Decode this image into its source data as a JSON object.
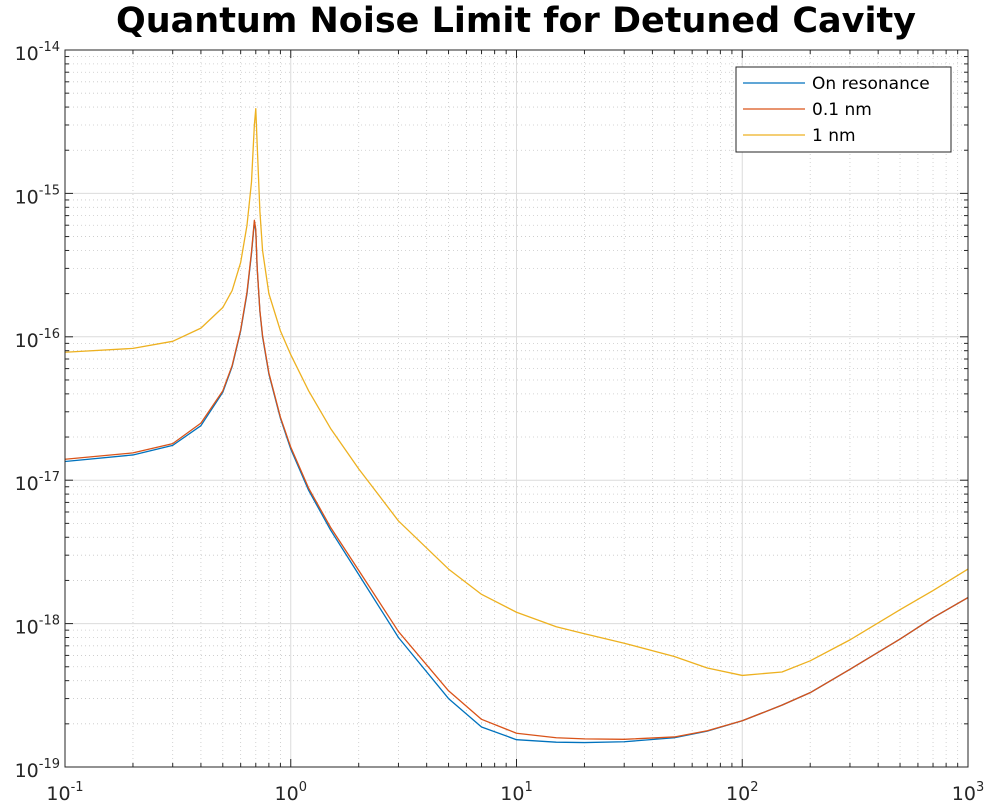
{
  "chart_data": {
    "type": "line",
    "title": "Quantum Noise Limit for Detuned Cavity",
    "xlabel": "",
    "ylabel": "",
    "x_scale": "log",
    "y_scale": "log",
    "xlim": [
      0.1,
      1000
    ],
    "ylim": [
      1e-19,
      1e-14
    ],
    "grid": true,
    "minor_grid": true,
    "legend_location": "top-right",
    "x_ticks": [
      {
        "base": "10",
        "exp": "-1"
      },
      {
        "base": "10",
        "exp": "0"
      },
      {
        "base": "10",
        "exp": "1"
      },
      {
        "base": "10",
        "exp": "2"
      },
      {
        "base": "10",
        "exp": "3"
      }
    ],
    "y_ticks": [
      {
        "base": "10",
        "exp": "-14"
      },
      {
        "base": "10",
        "exp": "-15"
      },
      {
        "base": "10",
        "exp": "-16"
      },
      {
        "base": "10",
        "exp": "-17"
      },
      {
        "base": "10",
        "exp": "-18"
      },
      {
        "base": "10",
        "exp": "-19"
      }
    ],
    "series": [
      {
        "name": "On resonance",
        "color": "#0072BD",
        "x": [
          0.1,
          0.2,
          0.3,
          0.4,
          0.5,
          0.55,
          0.6,
          0.64,
          0.67,
          0.69,
          0.7,
          0.71,
          0.73,
          0.75,
          0.8,
          0.9,
          1.0,
          1.2,
          1.5,
          2,
          3,
          5,
          7,
          10,
          15,
          20,
          30,
          50,
          70,
          100,
          150,
          200,
          300,
          500,
          700,
          1000
        ],
        "y": [
          1.35e-17,
          1.5e-17,
          1.75e-17,
          2.4e-17,
          4.1e-17,
          6.2e-17,
          1.1e-16,
          2e-16,
          3.8e-16,
          6.3e-16,
          5.5e-16,
          3e-16,
          1.5e-16,
          1e-16,
          5.5e-17,
          2.7e-17,
          1.65e-17,
          8.5e-18,
          4.5e-18,
          2.2e-18,
          8e-19,
          3e-19,
          1.9e-19,
          1.55e-19,
          1.49e-19,
          1.48e-19,
          1.5e-19,
          1.6e-19,
          1.78e-19,
          2.1e-19,
          2.7e-19,
          3.3e-19,
          4.8e-19,
          7.8e-19,
          1.1e-18,
          1.52e-18
        ]
      },
      {
        "name": "0.1 nm",
        "color": "#D95319",
        "x": [
          0.1,
          0.2,
          0.3,
          0.4,
          0.5,
          0.55,
          0.6,
          0.64,
          0.67,
          0.69,
          0.7,
          0.71,
          0.73,
          0.75,
          0.8,
          0.9,
          1.0,
          1.2,
          1.5,
          2,
          3,
          5,
          7,
          10,
          15,
          20,
          30,
          50,
          70,
          100,
          150,
          200,
          300,
          500,
          700,
          1000
        ],
        "y": [
          1.4e-17,
          1.55e-17,
          1.8e-17,
          2.5e-17,
          4.2e-17,
          6.3e-17,
          1.12e-16,
          2.05e-16,
          3.9e-16,
          6.5e-16,
          5.6e-16,
          3.05e-16,
          1.52e-16,
          1.02e-16,
          5.6e-17,
          2.75e-17,
          1.7e-17,
          8.8e-18,
          4.7e-18,
          2.35e-18,
          8.8e-19,
          3.4e-19,
          2.15e-19,
          1.72e-19,
          1.6e-19,
          1.57e-19,
          1.56e-19,
          1.62e-19,
          1.79e-19,
          2.1e-19,
          2.7e-19,
          3.3e-19,
          4.8e-19,
          7.8e-19,
          1.1e-18,
          1.52e-18
        ]
      },
      {
        "name": "1 nm",
        "color": "#EDB120",
        "x": [
          0.1,
          0.2,
          0.3,
          0.4,
          0.5,
          0.55,
          0.6,
          0.64,
          0.67,
          0.69,
          0.7,
          0.71,
          0.73,
          0.75,
          0.8,
          0.9,
          1.0,
          1.2,
          1.5,
          2,
          3,
          5,
          7,
          10,
          15,
          20,
          30,
          50,
          70,
          100,
          150,
          200,
          300,
          500,
          700,
          1000
        ],
        "y": [
          7.8e-17,
          8.3e-17,
          9.3e-17,
          1.15e-16,
          1.6e-16,
          2.1e-16,
          3.3e-16,
          6e-16,
          1.2e-15,
          3e-15,
          3.9e-15,
          2.2e-15,
          7.5e-16,
          4e-16,
          2e-16,
          1.1e-16,
          7.5e-17,
          4.2e-17,
          2.3e-17,
          1.2e-17,
          5.2e-18,
          2.4e-18,
          1.6e-18,
          1.2e-18,
          9.5e-19,
          8.5e-19,
          7.3e-19,
          5.9e-19,
          4.9e-19,
          4.35e-19,
          4.6e-19,
          5.5e-19,
          7.7e-19,
          1.25e-18,
          1.7e-18,
          2.4e-18
        ]
      }
    ]
  }
}
